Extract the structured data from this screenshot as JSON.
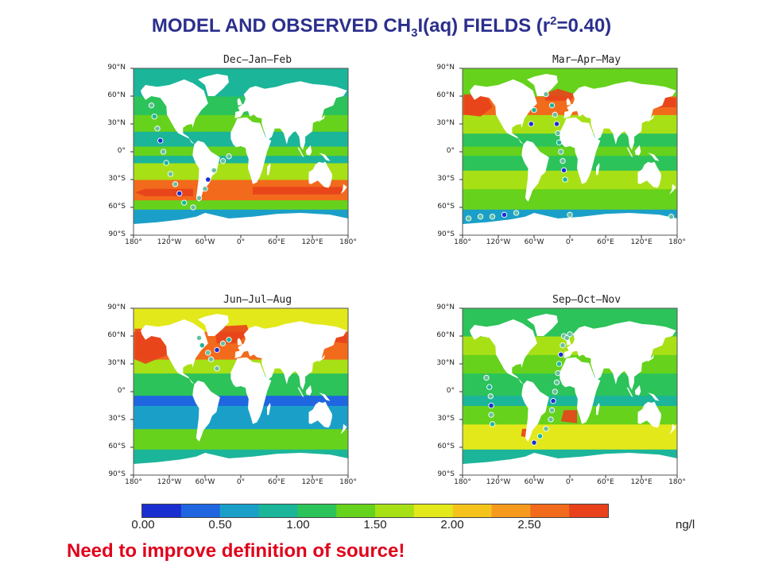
{
  "title": {
    "prefix": "MODEL AND OBSERVED CH",
    "sub": "3",
    "middle": "I(aq) FIELDS (r",
    "sup": "2",
    "suffix": "=0.40)"
  },
  "y_ticks": [
    "90°N",
    "60°N",
    "30°N",
    "0°",
    "30°S",
    "60°S",
    "90°S"
  ],
  "x_ticks": [
    "180°",
    "120°W",
    "60°W",
    "0°",
    "60°E",
    "120°E",
    "180°"
  ],
  "panels": [
    {
      "season": "Dec—Jan—Feb"
    },
    {
      "season": "Mar—Apr—May"
    },
    {
      "season": "Jun—Jul—Aug"
    },
    {
      "season": "Sep—Oct—Nov"
    }
  ],
  "colorbar": {
    "labels": [
      "0.00",
      "0.50",
      "1.00",
      "1.50",
      "2.00",
      "2.50"
    ],
    "unit": "ng/l",
    "colors": [
      "#1a2fcf",
      "#1f66e0",
      "#1aa0c8",
      "#1bb59a",
      "#2cc35a",
      "#66d21c",
      "#a8e016",
      "#e3e81a",
      "#f6c31c",
      "#f59a1d",
      "#f26a1c",
      "#e8411c"
    ]
  },
  "footer": "Need to improve definition of source!"
}
